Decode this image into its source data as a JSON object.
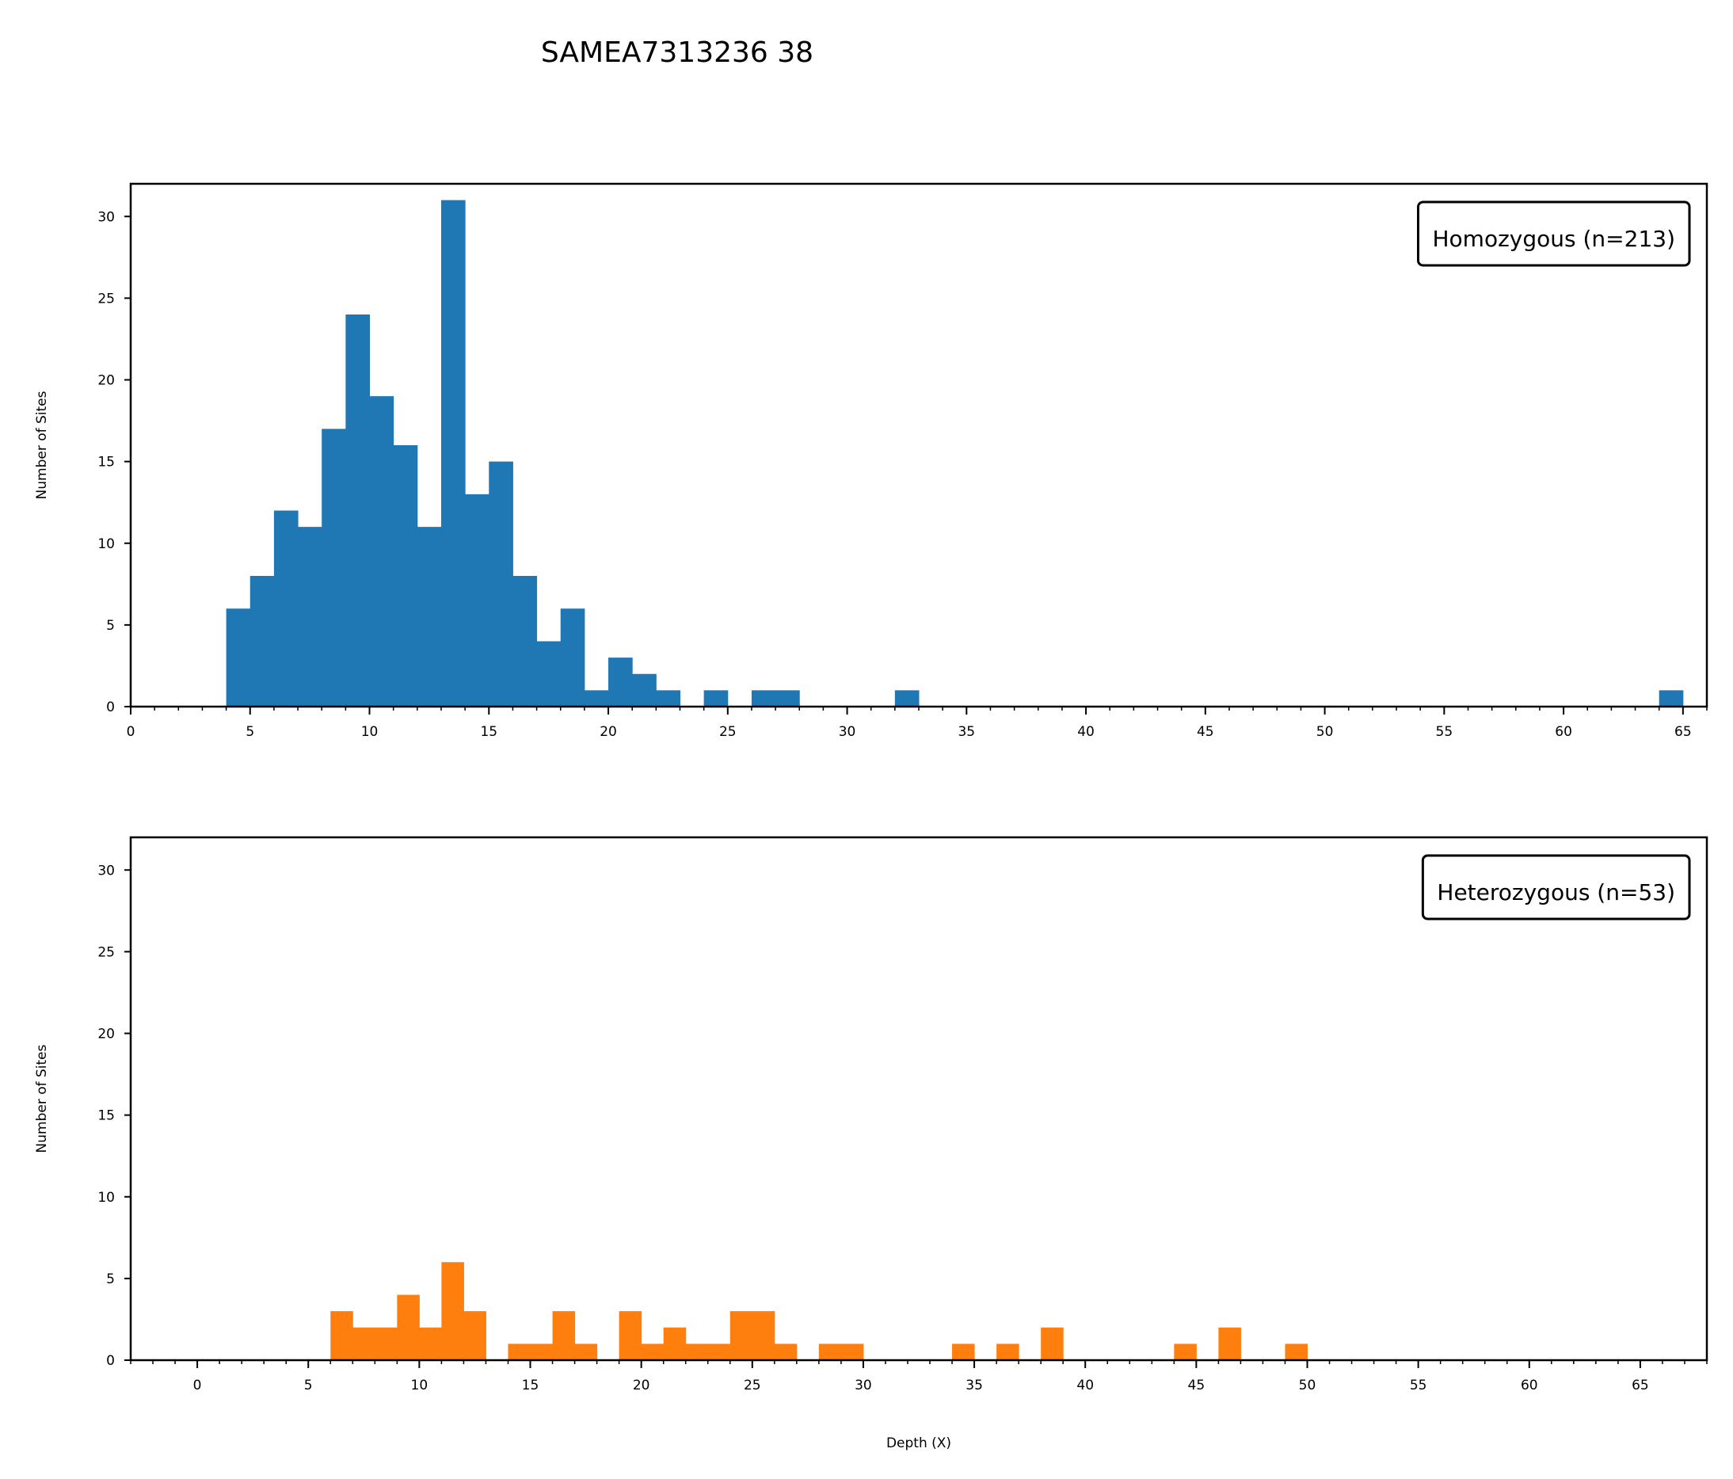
{
  "title": "SAMEA7313236 38",
  "chart_data": [
    {
      "type": "bar",
      "legend": "Homozygous (n=213)",
      "color": "#1f77b4",
      "ylabel": "Number of Sites",
      "xlabel": "",
      "xlim": [
        0,
        66
      ],
      "ylim": [
        0,
        32
      ],
      "xticks": [
        0,
        5,
        10,
        15,
        20,
        25,
        30,
        35,
        40,
        45,
        50,
        55,
        60,
        65
      ],
      "yticks": [
        0,
        5,
        10,
        15,
        20,
        25,
        30
      ],
      "legend_position": "top-right",
      "bins": [
        {
          "x": 4,
          "count": 6
        },
        {
          "x": 5,
          "count": 8
        },
        {
          "x": 6,
          "count": 12
        },
        {
          "x": 7,
          "count": 11
        },
        {
          "x": 8,
          "count": 17
        },
        {
          "x": 9,
          "count": 24
        },
        {
          "x": 10,
          "count": 19
        },
        {
          "x": 11,
          "count": 16
        },
        {
          "x": 12,
          "count": 11
        },
        {
          "x": 13,
          "count": 31
        },
        {
          "x": 14,
          "count": 13
        },
        {
          "x": 15,
          "count": 15
        },
        {
          "x": 16,
          "count": 8
        },
        {
          "x": 17,
          "count": 4
        },
        {
          "x": 18,
          "count": 6
        },
        {
          "x": 19,
          "count": 1
        },
        {
          "x": 20,
          "count": 3
        },
        {
          "x": 21,
          "count": 2
        },
        {
          "x": 22,
          "count": 1
        },
        {
          "x": 24,
          "count": 1
        },
        {
          "x": 26,
          "count": 1
        },
        {
          "x": 27,
          "count": 1
        },
        {
          "x": 32,
          "count": 1
        },
        {
          "x": 64,
          "count": 1
        }
      ]
    },
    {
      "type": "bar",
      "legend": "Heterozygous (n=53)",
      "color": "#ff7f0e",
      "ylabel": "Number of Sites",
      "xlabel": "Depth (X)",
      "xlim": [
        -3,
        68
      ],
      "ylim": [
        0,
        32
      ],
      "xticks": [
        0,
        5,
        10,
        15,
        20,
        25,
        30,
        35,
        40,
        45,
        50,
        55,
        60,
        65
      ],
      "yticks": [
        0,
        5,
        10,
        15,
        20,
        25,
        30
      ],
      "legend_position": "top-right",
      "bins": [
        {
          "x": 6,
          "count": 3
        },
        {
          "x": 7,
          "count": 2
        },
        {
          "x": 8,
          "count": 2
        },
        {
          "x": 9,
          "count": 4
        },
        {
          "x": 10,
          "count": 2
        },
        {
          "x": 11,
          "count": 6
        },
        {
          "x": 12,
          "count": 3
        },
        {
          "x": 14,
          "count": 1
        },
        {
          "x": 15,
          "count": 1
        },
        {
          "x": 16,
          "count": 3
        },
        {
          "x": 17,
          "count": 1
        },
        {
          "x": 19,
          "count": 3
        },
        {
          "x": 20,
          "count": 1
        },
        {
          "x": 21,
          "count": 2
        },
        {
          "x": 22,
          "count": 1
        },
        {
          "x": 23,
          "count": 1
        },
        {
          "x": 24,
          "count": 3
        },
        {
          "x": 25,
          "count": 3
        },
        {
          "x": 26,
          "count": 1
        },
        {
          "x": 28,
          "count": 1
        },
        {
          "x": 29,
          "count": 1
        },
        {
          "x": 34,
          "count": 1
        },
        {
          "x": 36,
          "count": 1
        },
        {
          "x": 38,
          "count": 2
        },
        {
          "x": 44,
          "count": 1
        },
        {
          "x": 46,
          "count": 2
        },
        {
          "x": 49,
          "count": 1
        }
      ]
    }
  ]
}
